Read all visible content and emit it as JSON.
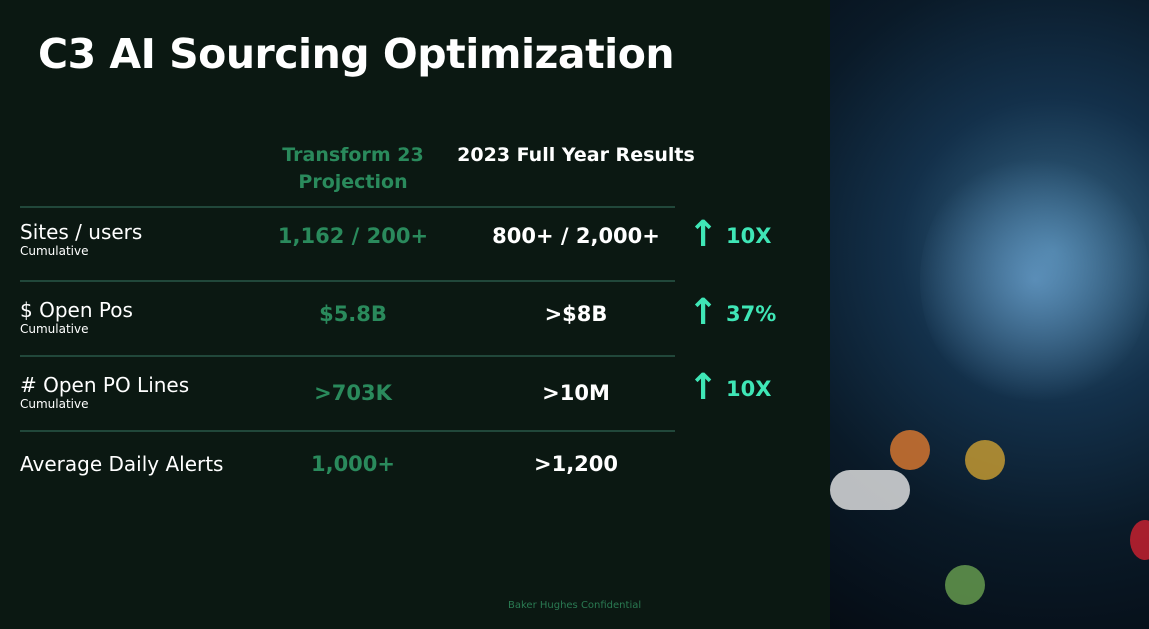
{
  "title": "C3 AI Sourcing Optimization",
  "columns": {
    "projection": "Transform 23 Projection",
    "results": "2023 Full Year Results"
  },
  "rows": [
    {
      "label": "Sites / users",
      "sub": "Cumulative",
      "projection": "1,162 / 200+",
      "results": "800+ / 2,000+",
      "gain": "10X",
      "icon": "arrow-up-icon"
    },
    {
      "label": "$ Open Pos",
      "sub": "Cumulative",
      "projection": "$5.8B",
      "results": ">$8B",
      "gain": "37%",
      "icon": "arrow-up-icon"
    },
    {
      "label": "# Open PO Lines",
      "sub": "Cumulative",
      "projection": ">703K",
      "results": ">10M",
      "gain": "10X",
      "icon": "arrow-up-icon"
    },
    {
      "label": "Average Daily Alerts",
      "projection": "1,000+",
      "results": ">1,200"
    }
  ],
  "footer": "Baker Hughes Confidential",
  "colors": {
    "background": "#0b1812",
    "projection": "#2a8a5c",
    "accent": "#3fe6b6"
  }
}
